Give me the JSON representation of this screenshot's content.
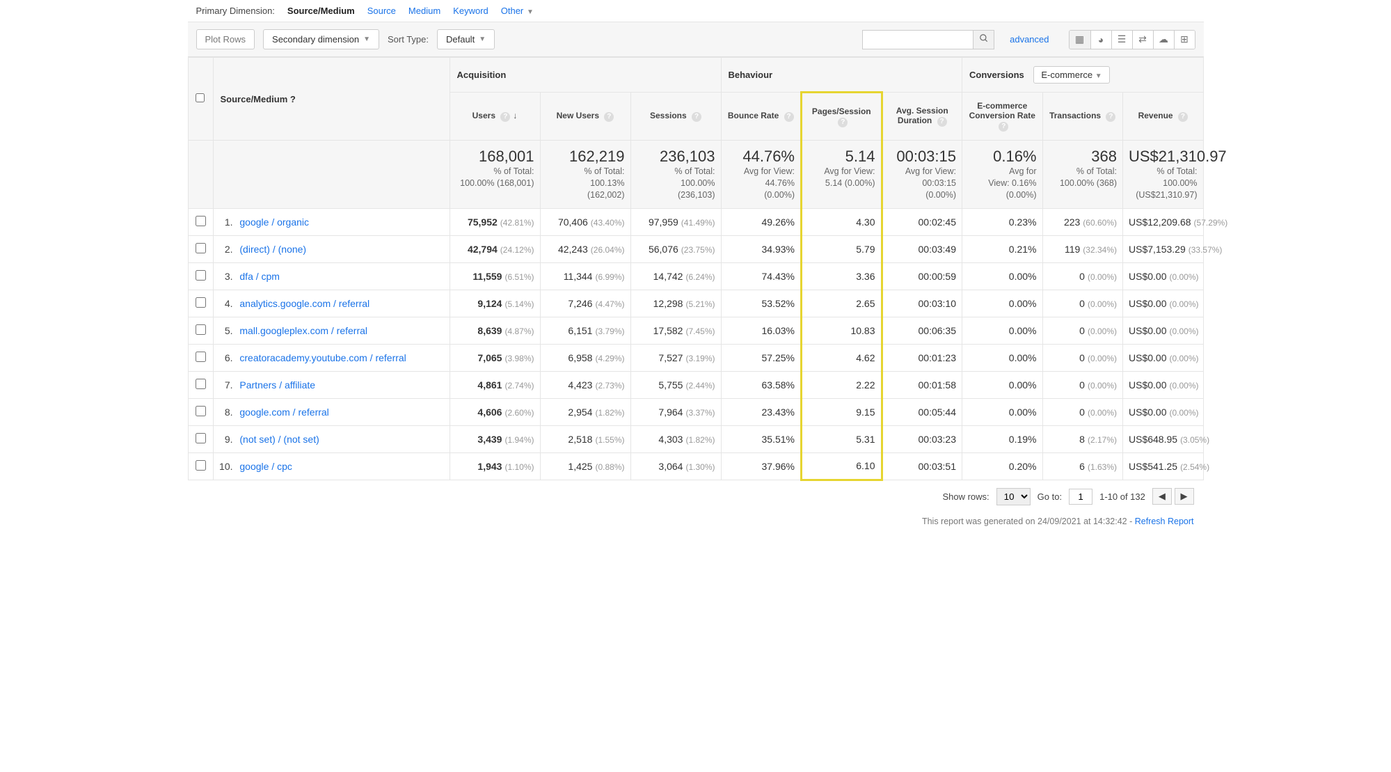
{
  "colors": {
    "link": "#1a73e8",
    "muted": "#999999",
    "border": "#e5e5e5",
    "highlight": "#e6d531",
    "headerBg": "#f6f6f6"
  },
  "topBar": {
    "label": "Primary Dimension:",
    "active": "Source/Medium",
    "dims": [
      "Source",
      "Medium",
      "Keyword"
    ],
    "other": "Other"
  },
  "controls": {
    "plotRows": "Plot Rows",
    "secondary": "Secondary dimension",
    "sortTypeLabel": "Sort Type:",
    "sortTypeValue": "Default",
    "advanced": "advanced"
  },
  "groups": {
    "dimensionLabel": "Source/Medium",
    "acquisition": "Acquisition",
    "behaviour": "Behaviour",
    "conversions": "Conversions",
    "conversionsDropdown": "E-commerce"
  },
  "columns": [
    "Users",
    "New Users",
    "Sessions",
    "Bounce Rate",
    "Pages/Session",
    "Avg. Session Duration",
    "E-commerce Conversion Rate",
    "Transactions",
    "Revenue"
  ],
  "highlightColIndex": 4,
  "summary": {
    "users": {
      "big": "168,001",
      "sub1": "% of Total:",
      "sub2": "100.00% (168,001)"
    },
    "newUsers": {
      "big": "162,219",
      "sub1": "% of Total:",
      "sub2": "100.13%",
      "sub3": "(162,002)"
    },
    "sessions": {
      "big": "236,103",
      "sub1": "% of Total:",
      "sub2": "100.00%",
      "sub3": "(236,103)"
    },
    "bounce": {
      "big": "44.76%",
      "sub1": "Avg for View:",
      "sub2": "44.76%",
      "sub3": "(0.00%)"
    },
    "pages": {
      "big": "5.14",
      "sub1": "Avg for View:",
      "sub2": "5.14 (0.00%)"
    },
    "avgDur": {
      "big": "00:03:15",
      "sub1": "Avg for View:",
      "sub2": "00:03:15",
      "sub3": "(0.00%)"
    },
    "convRate": {
      "big": "0.16%",
      "sub1": "Avg for",
      "sub2": "View: 0.16%",
      "sub3": "(0.00%)"
    },
    "trans": {
      "big": "368",
      "sub1": "% of Total:",
      "sub2": "100.00% (368)"
    },
    "revenue": {
      "big": "US$21,310.97",
      "sub1": "% of Total: 100.00%",
      "sub2": "(US$21,310.97)"
    }
  },
  "rows": [
    {
      "i": "1.",
      "src": "google / organic",
      "users": "75,952",
      "usersPct": "(42.81%)",
      "newUsers": "70,406",
      "newUsersPct": "(43.40%)",
      "sessions": "97,959",
      "sessionsPct": "(41.49%)",
      "bounce": "49.26%",
      "pages": "4.30",
      "dur": "00:02:45",
      "conv": "0.23%",
      "trans": "223",
      "transPct": "(60.60%)",
      "rev": "US$12,209.68",
      "revPct": "(57.29%)"
    },
    {
      "i": "2.",
      "src": "(direct) / (none)",
      "users": "42,794",
      "usersPct": "(24.12%)",
      "newUsers": "42,243",
      "newUsersPct": "(26.04%)",
      "sessions": "56,076",
      "sessionsPct": "(23.75%)",
      "bounce": "34.93%",
      "pages": "5.79",
      "dur": "00:03:49",
      "conv": "0.21%",
      "trans": "119",
      "transPct": "(32.34%)",
      "rev": "US$7,153.29",
      "revPct": "(33.57%)"
    },
    {
      "i": "3.",
      "src": "dfa / cpm",
      "users": "11,559",
      "usersPct": "(6.51%)",
      "newUsers": "11,344",
      "newUsersPct": "(6.99%)",
      "sessions": "14,742",
      "sessionsPct": "(6.24%)",
      "bounce": "74.43%",
      "pages": "3.36",
      "dur": "00:00:59",
      "conv": "0.00%",
      "trans": "0",
      "transPct": "(0.00%)",
      "rev": "US$0.00",
      "revPct": "(0.00%)"
    },
    {
      "i": "4.",
      "src": "analytics.google.com / referral",
      "users": "9,124",
      "usersPct": "(5.14%)",
      "newUsers": "7,246",
      "newUsersPct": "(4.47%)",
      "sessions": "12,298",
      "sessionsPct": "(5.21%)",
      "bounce": "53.52%",
      "pages": "2.65",
      "dur": "00:03:10",
      "conv": "0.00%",
      "trans": "0",
      "transPct": "(0.00%)",
      "rev": "US$0.00",
      "revPct": "(0.00%)"
    },
    {
      "i": "5.",
      "src": "mall.googleplex.com / referral",
      "users": "8,639",
      "usersPct": "(4.87%)",
      "newUsers": "6,151",
      "newUsersPct": "(3.79%)",
      "sessions": "17,582",
      "sessionsPct": "(7.45%)",
      "bounce": "16.03%",
      "pages": "10.83",
      "dur": "00:06:35",
      "conv": "0.00%",
      "trans": "0",
      "transPct": "(0.00%)",
      "rev": "US$0.00",
      "revPct": "(0.00%)"
    },
    {
      "i": "6.",
      "src": "creatoracademy.youtube.com / referral",
      "users": "7,065",
      "usersPct": "(3.98%)",
      "newUsers": "6,958",
      "newUsersPct": "(4.29%)",
      "sessions": "7,527",
      "sessionsPct": "(3.19%)",
      "bounce": "57.25%",
      "pages": "4.62",
      "dur": "00:01:23",
      "conv": "0.00%",
      "trans": "0",
      "transPct": "(0.00%)",
      "rev": "US$0.00",
      "revPct": "(0.00%)"
    },
    {
      "i": "7.",
      "src": "Partners / affiliate",
      "users": "4,861",
      "usersPct": "(2.74%)",
      "newUsers": "4,423",
      "newUsersPct": "(2.73%)",
      "sessions": "5,755",
      "sessionsPct": "(2.44%)",
      "bounce": "63.58%",
      "pages": "2.22",
      "dur": "00:01:58",
      "conv": "0.00%",
      "trans": "0",
      "transPct": "(0.00%)",
      "rev": "US$0.00",
      "revPct": "(0.00%)"
    },
    {
      "i": "8.",
      "src": "google.com / referral",
      "users": "4,606",
      "usersPct": "(2.60%)",
      "newUsers": "2,954",
      "newUsersPct": "(1.82%)",
      "sessions": "7,964",
      "sessionsPct": "(3.37%)",
      "bounce": "23.43%",
      "pages": "9.15",
      "dur": "00:05:44",
      "conv": "0.00%",
      "trans": "0",
      "transPct": "(0.00%)",
      "rev": "US$0.00",
      "revPct": "(0.00%)"
    },
    {
      "i": "9.",
      "src": "(not set) / (not set)",
      "users": "3,439",
      "usersPct": "(1.94%)",
      "newUsers": "2,518",
      "newUsersPct": "(1.55%)",
      "sessions": "4,303",
      "sessionsPct": "(1.82%)",
      "bounce": "35.51%",
      "pages": "5.31",
      "dur": "00:03:23",
      "conv": "0.19%",
      "trans": "8",
      "transPct": "(2.17%)",
      "rev": "US$648.95",
      "revPct": "(3.05%)"
    },
    {
      "i": "10.",
      "src": "google / cpc",
      "users": "1,943",
      "usersPct": "(1.10%)",
      "newUsers": "1,425",
      "newUsersPct": "(0.88%)",
      "sessions": "3,064",
      "sessionsPct": "(1.30%)",
      "bounce": "37.96%",
      "pages": "6.10",
      "dur": "00:03:51",
      "conv": "0.20%",
      "trans": "6",
      "transPct": "(1.63%)",
      "rev": "US$541.25",
      "revPct": "(2.54%)"
    }
  ],
  "pager": {
    "showRowsLabel": "Show rows:",
    "showRowsValue": "10",
    "goToLabel": "Go to:",
    "goToValue": "1",
    "rangeText": "1-10 of 132"
  },
  "footer": {
    "text": "This report was generated on 24/09/2021 at 14:32:42 - ",
    "refresh": "Refresh Report"
  }
}
